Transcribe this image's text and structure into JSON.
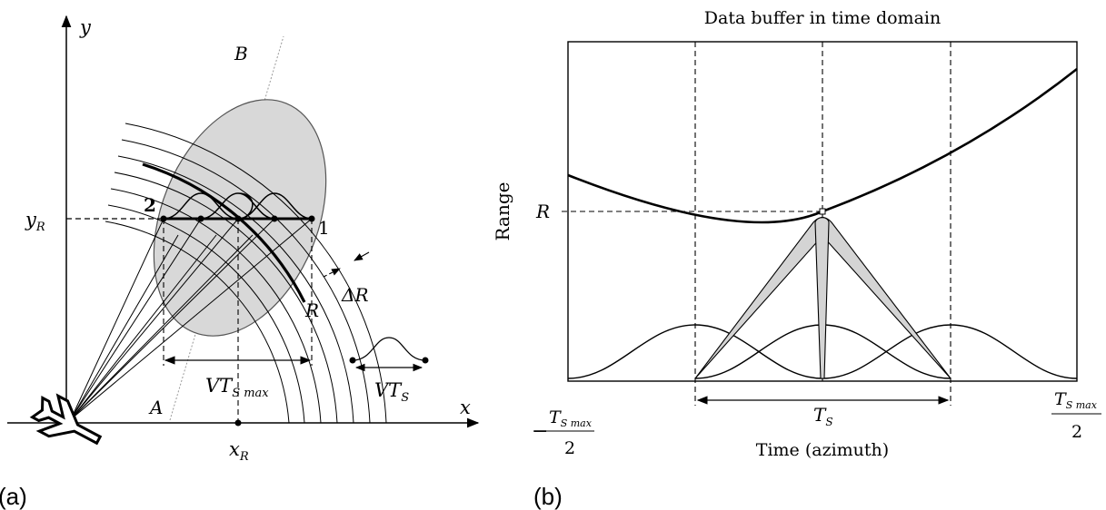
{
  "panel_a": {
    "caption": "(a)",
    "axis_x": "x",
    "axis_y": "y",
    "label_A": "A",
    "label_B": "B",
    "label_R": "R",
    "label_1": "1",
    "label_2": "2",
    "y_R": "y",
    "y_R_sub": "R",
    "x_R": "x",
    "x_R_sub": "R",
    "delta_R": "ΔR",
    "vts_max": "VT",
    "vts_max_sub": "S max",
    "vts": "VT",
    "vts_sub": "S"
  },
  "panel_b": {
    "caption": "(b)",
    "title": "Data buffer in time domain",
    "ylabel": "Range",
    "r_label": "R",
    "xlabel": "Time (azimuth)",
    "left_tick_minus": "−",
    "left_tick_num": "T",
    "left_tick_num_sub": "S max",
    "left_tick_den": "2",
    "right_tick_num": "T",
    "right_tick_num_sub": "S max",
    "right_tick_den": "2",
    "ts": "T",
    "ts_sub": "S"
  }
}
